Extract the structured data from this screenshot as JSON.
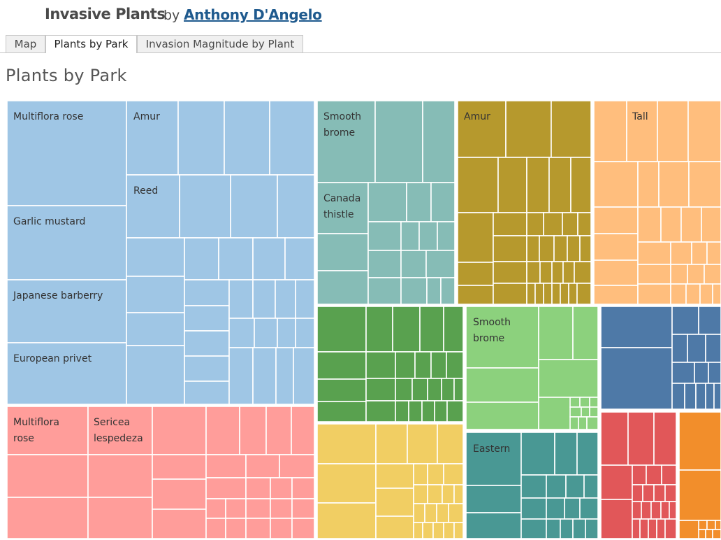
{
  "header": {
    "title": "Invasive Plants",
    "by": "by",
    "author": "Anthony D'Angelo"
  },
  "tabs": [
    {
      "label": "Map",
      "active": false
    },
    {
      "label": "Plants by Park",
      "active": true
    },
    {
      "label": "Invasion Magnitude by Plant",
      "active": false
    }
  ],
  "view_title": "Plants by Park",
  "chart_data": {
    "type": "treemap",
    "labels": [
      {
        "key": "lb-multiflora-rose-blue",
        "text": "Multiflora rose",
        "color": "#9fc6e5"
      },
      {
        "key": "lb-amur-blue",
        "text": "Amur",
        "color": "#9fc6e5"
      },
      {
        "key": "lb-reed-blue",
        "text": "Reed",
        "color": "#9fc6e5"
      },
      {
        "key": "lb-garlic-mustard",
        "text": "Garlic mustard",
        "color": "#9fc6e5"
      },
      {
        "key": "lb-japanese-barberry",
        "text": "Japanese barberry",
        "color": "#9fc6e5"
      },
      {
        "key": "lb-european-privet",
        "text": "European privet",
        "color": "#9fc6e5"
      },
      {
        "key": "lb-multiflora-rose-red",
        "text": [
          "Multiflora",
          "rose"
        ],
        "color": "#ff9d9a"
      },
      {
        "key": "lb-sericea-lespedeza",
        "text": [
          "Sericea",
          "lespedeza"
        ],
        "color": "#ff9d9a"
      },
      {
        "key": "lb-smooth-brome-teal",
        "text": [
          "Smooth",
          "brome"
        ],
        "color": "#86bcb6"
      },
      {
        "key": "lb-canada-thistle",
        "text": [
          "Canada",
          "thistle"
        ],
        "color": "#86bcb6"
      },
      {
        "key": "lb-amur-olive",
        "text": "Amur",
        "color": "#b6992d"
      },
      {
        "key": "lb-tall",
        "text": "Tall",
        "color": "#ffbe7d"
      },
      {
        "key": "lb-smooth-brome-green",
        "text": [
          "Smooth",
          "brome"
        ],
        "color": "#8cd17d"
      },
      {
        "key": "lb-eastern",
        "text": "Eastern",
        "color": "#499894"
      }
    ],
    "groups": [
      {
        "key": "park-light-blue",
        "color": "#9fc6e5"
      },
      {
        "key": "park-pink",
        "color": "#ff9d9a"
      },
      {
        "key": "park-teal-light",
        "color": "#86bcb6"
      },
      {
        "key": "park-olive",
        "color": "#b6992d"
      },
      {
        "key": "park-orange-light",
        "color": "#ffbe7d"
      },
      {
        "key": "park-green",
        "color": "#59a14f"
      },
      {
        "key": "park-light-green",
        "color": "#8cd17d"
      },
      {
        "key": "park-yellow",
        "color": "#f1ce63"
      },
      {
        "key": "park-teal-dark",
        "color": "#499894"
      },
      {
        "key": "park-blue",
        "color": "#4e79a7"
      },
      {
        "key": "park-red",
        "color": "#e15759"
      },
      {
        "key": "park-orange",
        "color": "#f28e2b"
      }
    ]
  }
}
